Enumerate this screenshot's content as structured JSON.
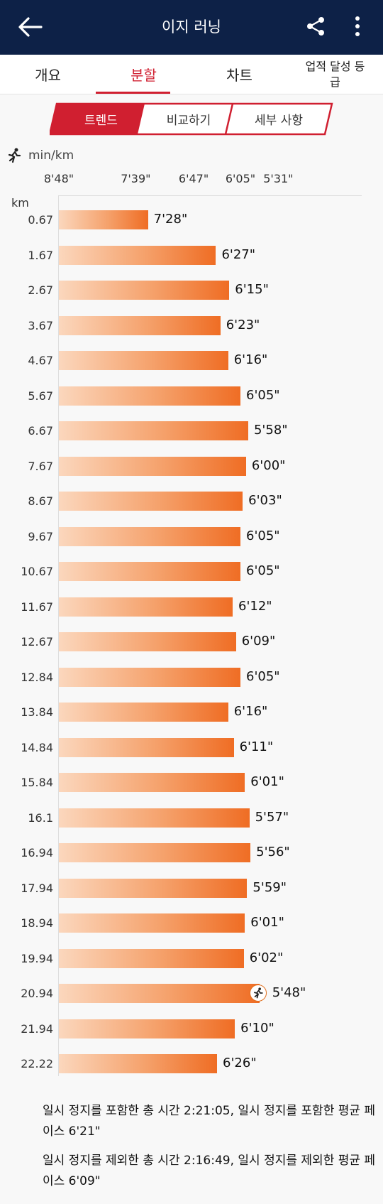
{
  "header": {
    "title": "이지 러닝"
  },
  "tabs": [
    {
      "label": "개요"
    },
    {
      "label": "분할"
    },
    {
      "label": "차트"
    },
    {
      "label": "업적 달성 등급"
    }
  ],
  "segments": [
    {
      "label": "트렌드"
    },
    {
      "label": "비교하기"
    },
    {
      "label": "세부 사항"
    }
  ],
  "chart_unit": "min/km",
  "chart_data": {
    "type": "bar",
    "orientation": "horizontal",
    "ylabel": "km",
    "xlabel": "min/km",
    "x_ticks": [
      "8'48\"",
      "7'39\"",
      "6'47\"",
      "6'05\"",
      "5'31\""
    ],
    "x_tick_seconds": [
      528,
      459,
      407,
      365,
      331
    ],
    "categories": [
      "0.67",
      "1.67",
      "2.67",
      "3.67",
      "4.67",
      "5.67",
      "6.67",
      "7.67",
      "8.67",
      "9.67",
      "10.67",
      "11.67",
      "12.67",
      "12.84",
      "13.84",
      "14.84",
      "15.84",
      "16.1",
      "16.94",
      "17.94",
      "18.94",
      "19.94",
      "20.94",
      "21.94",
      "22.22"
    ],
    "value_labels": [
      "7'28\"",
      "6'27\"",
      "6'15\"",
      "6'23\"",
      "6'16\"",
      "6'05\"",
      "5'58\"",
      "6'00\"",
      "6'03\"",
      "6'05\"",
      "6'05\"",
      "6'12\"",
      "6'09\"",
      "6'05\"",
      "6'16\"",
      "6'11\"",
      "6'01\"",
      "5'57\"",
      "5'56\"",
      "5'59\"",
      "6'01\"",
      "6'02\"",
      "5'48\"",
      "6'10\"",
      "6'26\""
    ],
    "values_seconds": [
      448,
      387,
      375,
      383,
      376,
      365,
      358,
      360,
      363,
      365,
      365,
      372,
      369,
      365,
      376,
      371,
      361,
      357,
      356,
      359,
      361,
      362,
      348,
      370,
      386
    ],
    "fastest_index": 22
  },
  "summary": {
    "line1": "일시 정지를 포함한 총 시간 2:21:05, 일시 정지를 포함한 평균 페이스 6'21\"",
    "line2": "일시 정지를 제외한 총 시간 2:16:49, 일시 정지를 제외한 평균 페이스 6'09\""
  },
  "colors": {
    "header_bg": "#0d2147",
    "accent": "#d01f30",
    "bar_end": "#ef6d24"
  }
}
